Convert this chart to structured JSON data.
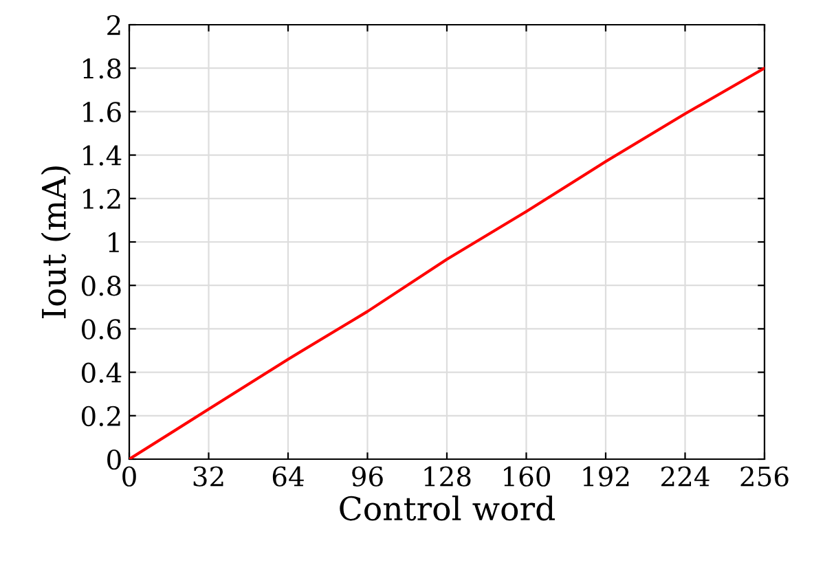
{
  "chart_data": {
    "type": "line",
    "xlabel": "Control word",
    "ylabel": "Iout (mA)",
    "x": [
      0,
      32,
      64,
      96,
      128,
      160,
      192,
      224,
      256
    ],
    "series": [
      {
        "color": "#ff0000",
        "values": [
          0,
          0.23,
          0.46,
          0.68,
          0.92,
          1.14,
          1.37,
          1.59,
          1.8
        ]
      }
    ],
    "xlim": [
      0,
      256
    ],
    "xticks": [
      0,
      32,
      64,
      96,
      128,
      160,
      192,
      224,
      256
    ],
    "ylim": [
      0,
      2
    ],
    "yticks": [
      0,
      0.2,
      0.4,
      0.6,
      0.8,
      1,
      1.2,
      1.4,
      1.6,
      1.8,
      2
    ],
    "grid": true,
    "line_style": "solid"
  }
}
